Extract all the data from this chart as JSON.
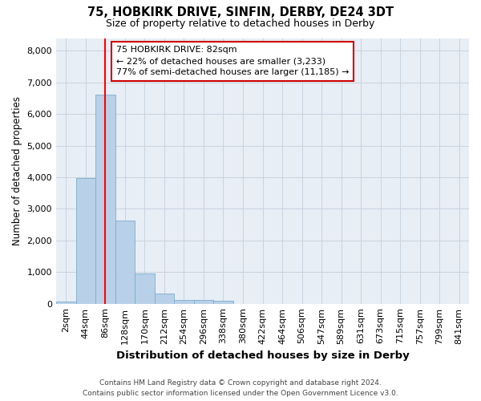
{
  "title_line1": "75, HOBKIRK DRIVE, SINFIN, DERBY, DE24 3DT",
  "title_line2": "Size of property relative to detached houses in Derby",
  "xlabel": "Distribution of detached houses by size in Derby",
  "ylabel": "Number of detached properties",
  "bar_color": "#b8d0e8",
  "bar_edge_color": "#7aaed0",
  "grid_color": "#c8d4e0",
  "plot_bg_color": "#e8eef5",
  "fig_bg_color": "#ffffff",
  "bin_labels": [
    "2sqm",
    "44sqm",
    "86sqm",
    "128sqm",
    "170sqm",
    "212sqm",
    "254sqm",
    "296sqm",
    "338sqm",
    "380sqm",
    "422sqm",
    "464sqm",
    "506sqm",
    "547sqm",
    "589sqm",
    "631sqm",
    "673sqm",
    "715sqm",
    "757sqm",
    "799sqm",
    "841sqm"
  ],
  "bar_values": [
    75,
    3980,
    6600,
    2620,
    950,
    310,
    130,
    120,
    90,
    0,
    0,
    0,
    0,
    0,
    0,
    0,
    0,
    0,
    0,
    0,
    0
  ],
  "ylim": [
    0,
    8400
  ],
  "yticks": [
    0,
    1000,
    2000,
    3000,
    4000,
    5000,
    6000,
    7000,
    8000
  ],
  "property_line_x": 2.0,
  "annotation_text": "75 HOBKIRK DRIVE: 82sqm\n← 22% of detached houses are smaller (3,233)\n77% of semi-detached houses are larger (11,185) →",
  "annotation_box_facecolor": "#ffffff",
  "annotation_box_edgecolor": "#cc0000",
  "footer_line1": "Contains HM Land Registry data © Crown copyright and database right 2024.",
  "footer_line2": "Contains public sector information licensed under the Open Government Licence v3.0."
}
